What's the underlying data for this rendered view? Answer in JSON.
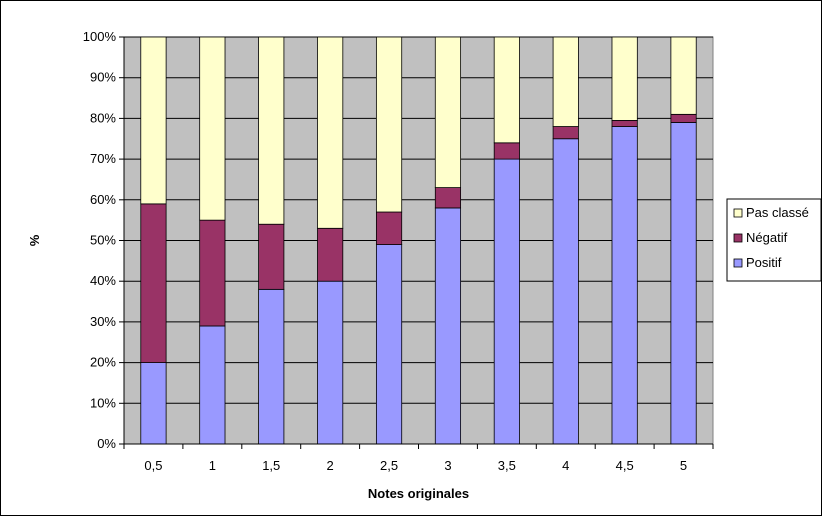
{
  "chart_data": {
    "type": "bar",
    "stacked": true,
    "percent_stacked": true,
    "title": "",
    "xlabel": "Notes originales",
    "ylabel": "%",
    "ylim": [
      0,
      100
    ],
    "yticks": [
      "0%",
      "10%",
      "20%",
      "30%",
      "40%",
      "50%",
      "60%",
      "70%",
      "80%",
      "90%",
      "100%"
    ],
    "categories": [
      "0,5",
      "1",
      "1,5",
      "2",
      "2,5",
      "3",
      "3,5",
      "4",
      "4,5",
      "5"
    ],
    "series": [
      {
        "name": "Positif",
        "color": "#9999ff",
        "values": [
          20,
          29,
          38,
          40,
          49,
          58,
          70,
          75,
          78,
          79
        ]
      },
      {
        "name": "Négatif",
        "color": "#993366",
        "values": [
          39,
          26,
          16,
          13,
          8,
          5,
          4,
          3,
          1.5,
          2
        ]
      },
      {
        "name": "Pas classé",
        "color": "#ffffcc",
        "values": [
          41,
          45,
          46,
          47,
          43,
          37,
          26,
          22,
          20.5,
          19
        ]
      }
    ],
    "legend_order": [
      "Pas classé",
      "Négatif",
      "Positif"
    ],
    "legend_position": "right",
    "grid": true,
    "plot_background": "#c0c0c0"
  }
}
